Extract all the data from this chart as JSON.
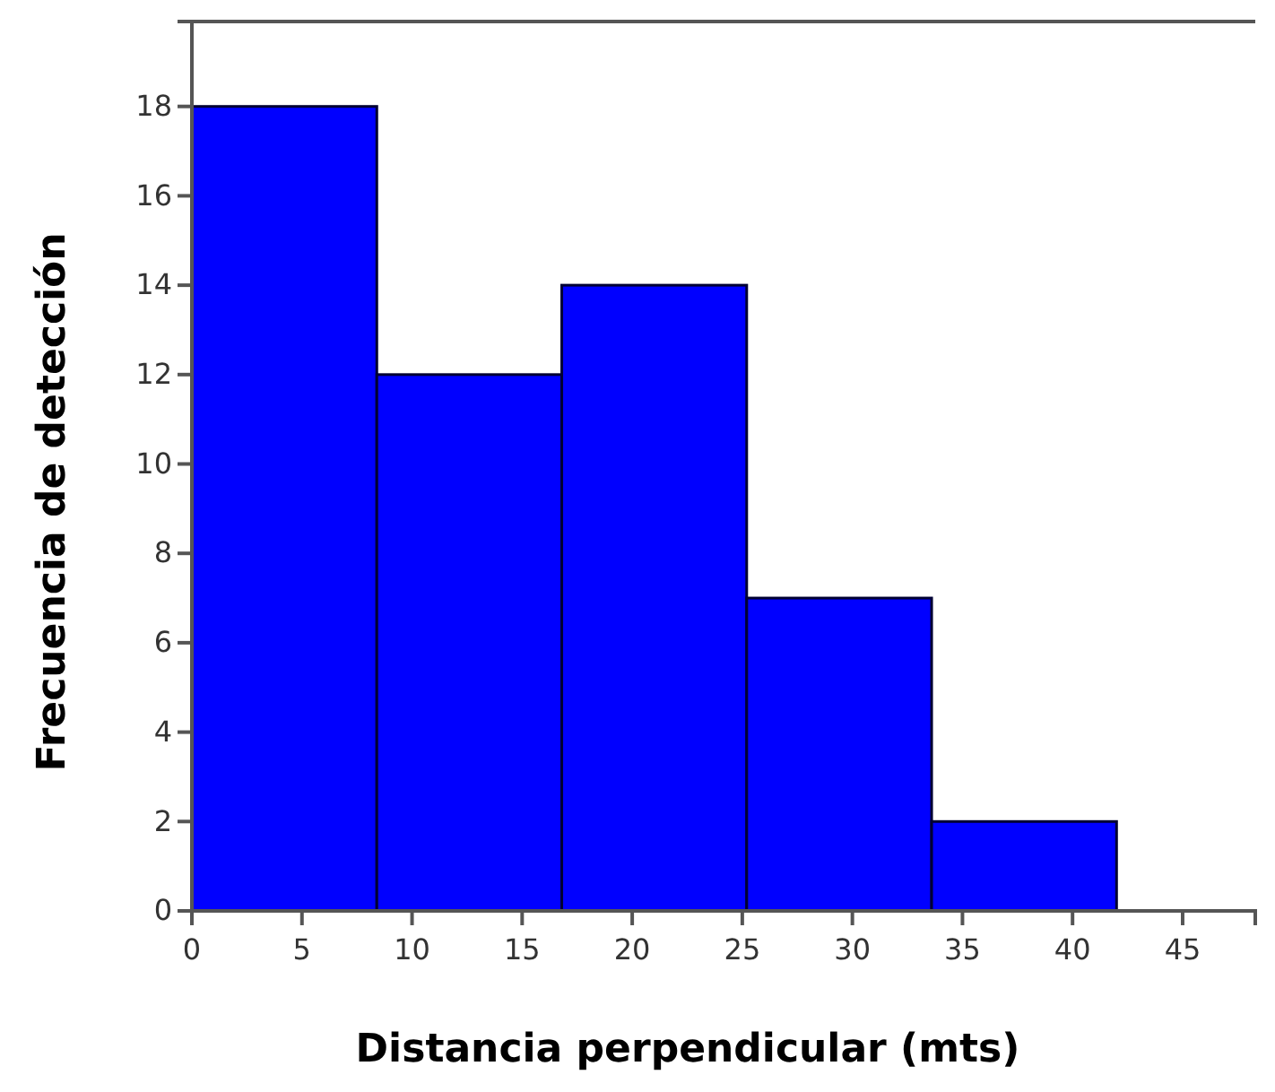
{
  "chart_data": {
    "type": "histogram",
    "xlabel": "Distancia perpendicular (mts)",
    "ylabel": "Frecuencia de detección",
    "bins": [
      0,
      8.4,
      16.8,
      25.2,
      33.6,
      42
    ],
    "values": [
      18,
      12,
      14,
      7,
      2
    ],
    "color": "#0000ff",
    "xlim": [
      0,
      48.3
    ],
    "xticks": [
      0,
      5,
      10,
      15,
      20,
      25,
      30,
      35,
      40,
      45
    ],
    "ylim": [
      0,
      19.9
    ],
    "yticks": [
      0,
      2,
      4,
      6,
      8,
      10,
      12,
      14,
      16,
      18
    ]
  }
}
